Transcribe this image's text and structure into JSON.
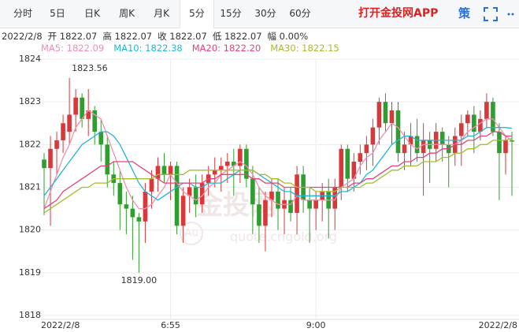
{
  "tabs": [
    "分时",
    "5日",
    "日K",
    "周K",
    "月K",
    "5分",
    "15分",
    "30分",
    "60分"
  ],
  "active_tab": 5,
  "brand": "打开金投网APP",
  "strategy": "策",
  "info": [
    "2022/2/8",
    "开 1822.07",
    "高 1822.07",
    "收 1822.07",
    "低 1822.07",
    "幅 0.00%"
  ],
  "watermark": [
    "金投网",
    "Au",
    "quote.cngold.org"
  ],
  "chart_data": {
    "type": "candlestick",
    "up_color": "#d8383a",
    "down_color": "#2f9d2f",
    "grid": true,
    "ylim": [
      1818,
      1824
    ],
    "yticks": [
      1818,
      1819,
      1820,
      1821,
      1822,
      1823,
      1824
    ],
    "categories": [
      "2022/2/8",
      null,
      null,
      null,
      null,
      null,
      null,
      null,
      null,
      null,
      null,
      null,
      null,
      null,
      null,
      null,
      null,
      null,
      null,
      null,
      "6:55",
      null,
      null,
      null,
      null,
      null,
      null,
      null,
      null,
      null,
      null,
      null,
      null,
      null,
      null,
      null,
      null,
      null,
      null,
      null,
      null,
      null,
      null,
      "9:00",
      null,
      null,
      null,
      null,
      null,
      null,
      null,
      null,
      null,
      null,
      null,
      null,
      null,
      null,
      null,
      null,
      null,
      null,
      null,
      null,
      null,
      null,
      null,
      null,
      null,
      null,
      null,
      null,
      null,
      null,
      "2022/2/8"
    ],
    "ohlc": [
      [
        1821.65,
        1821.8,
        1820.35,
        1821.45
      ],
      [
        1821.45,
        1822.2,
        1820.1,
        1821.9
      ],
      [
        1821.9,
        1822.3,
        1821.3,
        1822.1
      ],
      [
        1822.1,
        1822.7,
        1821.8,
        1822.5
      ],
      [
        1822.3,
        1823.56,
        1822.0,
        1822.7
      ],
      [
        1822.7,
        1823.3,
        1822.3,
        1823.1
      ],
      [
        1823.1,
        1823.2,
        1822.4,
        1822.6
      ],
      [
        1822.6,
        1823.3,
        1822.2,
        1822.8
      ],
      [
        1822.8,
        1822.9,
        1822.0,
        1822.3
      ],
      [
        1822.3,
        1822.6,
        1821.6,
        1822.0
      ],
      [
        1822.0,
        1822.2,
        1821.0,
        1821.3
      ],
      [
        1821.3,
        1821.6,
        1820.8,
        1821.1
      ],
      [
        1821.1,
        1821.4,
        1820.0,
        1820.6
      ],
      [
        1820.6,
        1820.9,
        1819.9,
        1820.5
      ],
      [
        1820.5,
        1820.8,
        1819.3,
        1820.3
      ],
      [
        1820.3,
        1820.4,
        1819.0,
        1820.2
      ],
      [
        1820.2,
        1821.1,
        1819.7,
        1820.9
      ],
      [
        1820.9,
        1821.4,
        1820.5,
        1821.2
      ],
      [
        1821.2,
        1821.7,
        1820.9,
        1821.5
      ],
      [
        1821.5,
        1821.8,
        1821.1,
        1821.3
      ],
      [
        1821.3,
        1821.6,
        1820.7,
        1821.5
      ],
      [
        1821.5,
        1821.6,
        1819.9,
        1820.1
      ],
      [
        1820.1,
        1821.0,
        1819.7,
        1820.8
      ],
      [
        1820.8,
        1821.2,
        1820.4,
        1821.0
      ],
      [
        1821.0,
        1821.3,
        1820.3,
        1820.6
      ],
      [
        1820.6,
        1821.3,
        1820.4,
        1821.1
      ],
      [
        1821.1,
        1821.5,
        1820.8,
        1821.3
      ],
      [
        1821.3,
        1821.7,
        1821.0,
        1821.4
      ],
      [
        1821.4,
        1821.7,
        1820.9,
        1821.5
      ],
      [
        1821.5,
        1821.8,
        1821.1,
        1821.6
      ],
      [
        1821.6,
        1821.9,
        1820.8,
        1821.5
      ],
      [
        1821.5,
        1822.0,
        1821.1,
        1821.9
      ],
      [
        1821.9,
        1822.0,
        1821.0,
        1821.2
      ],
      [
        1821.2,
        1821.5,
        1819.9,
        1820.6
      ],
      [
        1820.6,
        1821.0,
        1819.7,
        1820.1
      ],
      [
        1820.1,
        1820.9,
        1819.5,
        1820.7
      ],
      [
        1820.7,
        1821.2,
        1820.3,
        1820.9
      ],
      [
        1820.9,
        1821.2,
        1820.0,
        1820.5
      ],
      [
        1820.5,
        1821.0,
        1819.9,
        1820.7
      ],
      [
        1820.7,
        1821.0,
        1820.2,
        1820.4
      ],
      [
        1820.4,
        1821.5,
        1819.9,
        1821.3
      ],
      [
        1821.3,
        1821.5,
        1820.4,
        1820.7
      ],
      [
        1820.7,
        1821.0,
        1819.7,
        1820.5
      ],
      [
        1820.5,
        1820.9,
        1820.0,
        1820.7
      ],
      [
        1820.7,
        1821.1,
        1820.2,
        1820.9
      ],
      [
        1820.9,
        1821.2,
        1819.8,
        1820.5
      ],
      [
        1820.5,
        1821.2,
        1820.0,
        1821.0
      ],
      [
        1821.0,
        1822.0,
        1820.7,
        1821.9
      ],
      [
        1821.9,
        1822.0,
        1820.9,
        1821.2
      ],
      [
        1821.2,
        1821.8,
        1820.9,
        1821.6
      ],
      [
        1821.6,
        1822.0,
        1821.3,
        1821.8
      ],
      [
        1821.8,
        1822.2,
        1821.4,
        1822.0
      ],
      [
        1822.0,
        1822.6,
        1821.5,
        1822.4
      ],
      [
        1822.4,
        1823.1,
        1822.0,
        1823.0
      ],
      [
        1823.0,
        1823.2,
        1822.3,
        1822.5
      ],
      [
        1822.5,
        1823.0,
        1822.0,
        1822.8
      ],
      [
        1822.8,
        1823.0,
        1821.6,
        1821.8
      ],
      [
        1821.8,
        1822.3,
        1821.4,
        1822.0
      ],
      [
        1822.0,
        1822.5,
        1821.5,
        1822.2
      ],
      [
        1822.2,
        1822.6,
        1821.6,
        1821.8
      ],
      [
        1821.8,
        1822.5,
        1820.8,
        1822.1
      ],
      [
        1822.1,
        1822.3,
        1821.1,
        1821.9
      ],
      [
        1821.9,
        1822.5,
        1821.6,
        1822.3
      ],
      [
        1822.3,
        1822.4,
        1821.6,
        1822.0
      ],
      [
        1822.0,
        1822.2,
        1821.0,
        1821.8
      ],
      [
        1821.8,
        1822.4,
        1821.5,
        1822.2
      ],
      [
        1822.2,
        1822.7,
        1821.5,
        1822.5
      ],
      [
        1822.5,
        1822.8,
        1822.2,
        1822.7
      ],
      [
        1822.7,
        1822.9,
        1821.8,
        1822.3
      ],
      [
        1822.3,
        1822.8,
        1822.1,
        1822.6
      ],
      [
        1822.6,
        1823.2,
        1822.4,
        1823.0
      ],
      [
        1823.0,
        1823.1,
        1822.2,
        1822.3
      ],
      [
        1822.3,
        1822.5,
        1820.7,
        1821.8
      ],
      [
        1821.8,
        1822.2,
        1821.3,
        1822.1
      ],
      [
        1822.1,
        1822.3,
        1820.8,
        1822.07
      ]
    ],
    "annotations": [
      {
        "value": 1823.56,
        "label": "1823.56"
      },
      {
        "value": 1819.0,
        "label": "1819.00"
      }
    ],
    "series": [
      {
        "name": "MA5: 1822.09",
        "color": "#f08fb0",
        "values": [
          1820.5,
          1820.9,
          1821.3,
          1821.7,
          1822.0,
          1822.4,
          1822.6,
          1822.8,
          1822.7,
          1822.6,
          1822.2,
          1821.8,
          1821.4,
          1821.0,
          1820.7,
          1820.5,
          1820.5,
          1820.6,
          1820.8,
          1821.0,
          1821.3,
          1821.1,
          1820.9,
          1820.8,
          1820.7,
          1820.8,
          1821.0,
          1821.1,
          1821.3,
          1821.4,
          1821.5,
          1821.6,
          1821.5,
          1821.3,
          1821.0,
          1820.8,
          1820.7,
          1820.6,
          1820.6,
          1820.6,
          1820.8,
          1820.7,
          1820.7,
          1820.7,
          1820.7,
          1820.7,
          1820.7,
          1821.0,
          1821.1,
          1821.2,
          1821.5,
          1821.7,
          1821.8,
          1822.1,
          1822.3,
          1822.5,
          1822.4,
          1822.2,
          1822.0,
          1821.9,
          1822.0,
          1822.0,
          1822.0,
          1822.0,
          1822.0,
          1822.0,
          1822.1,
          1822.3,
          1822.4,
          1822.5,
          1822.6,
          1822.6,
          1822.4,
          1822.2,
          1822.09
        ]
      },
      {
        "name": "MA10: 1822.38",
        "color": "#22b5d8",
        "values": [
          1820.8,
          1821.0,
          1821.2,
          1821.4,
          1821.6,
          1821.8,
          1822.0,
          1822.1,
          1822.2,
          1822.3,
          1822.3,
          1822.2,
          1822.0,
          1821.7,
          1821.4,
          1821.1,
          1820.9,
          1820.8,
          1820.7,
          1820.8,
          1820.9,
          1821.0,
          1821.1,
          1821.1,
          1821.0,
          1821.0,
          1821.1,
          1821.1,
          1821.1,
          1821.2,
          1821.3,
          1821.4,
          1821.4,
          1821.4,
          1821.3,
          1821.2,
          1821.1,
          1821.0,
          1820.9,
          1820.9,
          1820.8,
          1820.8,
          1820.8,
          1820.8,
          1820.8,
          1820.8,
          1820.8,
          1820.9,
          1820.9,
          1821.0,
          1821.1,
          1821.3,
          1821.4,
          1821.6,
          1821.8,
          1822.0,
          1822.1,
          1822.2,
          1822.2,
          1822.1,
          1822.1,
          1822.1,
          1822.1,
          1822.1,
          1822.1,
          1822.1,
          1822.1,
          1822.2,
          1822.2,
          1822.3,
          1822.4,
          1822.4,
          1822.4,
          1822.4,
          1822.38
        ]
      },
      {
        "name": "MA20: 1822.20",
        "color": "#e0457b",
        "values": [
          1820.5,
          1820.6,
          1820.7,
          1820.9,
          1821.0,
          1821.1,
          1821.2,
          1821.3,
          1821.4,
          1821.5,
          1821.5,
          1821.6,
          1821.6,
          1821.6,
          1821.6,
          1821.5,
          1821.4,
          1821.3,
          1821.2,
          1821.1,
          1821.1,
          1821.1,
          1821.1,
          1821.1,
          1821.1,
          1821.1,
          1821.2,
          1821.2,
          1821.3,
          1821.3,
          1821.3,
          1821.3,
          1821.3,
          1821.2,
          1821.2,
          1821.1,
          1821.1,
          1821.1,
          1821.0,
          1821.0,
          1821.0,
          1821.0,
          1821.0,
          1821.0,
          1821.0,
          1821.0,
          1821.0,
          1821.0,
          1821.0,
          1821.1,
          1821.1,
          1821.2,
          1821.2,
          1821.3,
          1821.4,
          1821.5,
          1821.5,
          1821.6,
          1821.6,
          1821.7,
          1821.7,
          1821.8,
          1821.8,
          1821.9,
          1821.9,
          1822.0,
          1822.0,
          1822.1,
          1822.1,
          1822.2,
          1822.2,
          1822.3,
          1822.3,
          1822.2,
          1822.2
        ]
      },
      {
        "name": "MA30: 1822.15",
        "color": "#a3bd2c",
        "values": [
          1820.4,
          1820.5,
          1820.6,
          1820.7,
          1820.8,
          1820.9,
          1821.0,
          1821.0,
          1821.1,
          1821.1,
          1821.1,
          1821.2,
          1821.2,
          1821.2,
          1821.2,
          1821.2,
          1821.2,
          1821.2,
          1821.3,
          1821.3,
          1821.3,
          1821.3,
          1821.3,
          1821.4,
          1821.4,
          1821.4,
          1821.4,
          1821.4,
          1821.4,
          1821.4,
          1821.4,
          1821.4,
          1821.4,
          1821.4,
          1821.3,
          1821.3,
          1821.2,
          1821.2,
          1821.1,
          1821.1,
          1821.0,
          1821.0,
          1821.0,
          1820.9,
          1820.9,
          1820.9,
          1820.9,
          1821.0,
          1821.0,
          1821.0,
          1821.0,
          1821.1,
          1821.1,
          1821.2,
          1821.3,
          1821.4,
          1821.4,
          1821.5,
          1821.5,
          1821.5,
          1821.6,
          1821.6,
          1821.6,
          1821.7,
          1821.7,
          1821.8,
          1821.8,
          1821.9,
          1821.9,
          1822.0,
          1822.0,
          1822.1,
          1822.1,
          1822.1,
          1822.15
        ]
      }
    ]
  }
}
